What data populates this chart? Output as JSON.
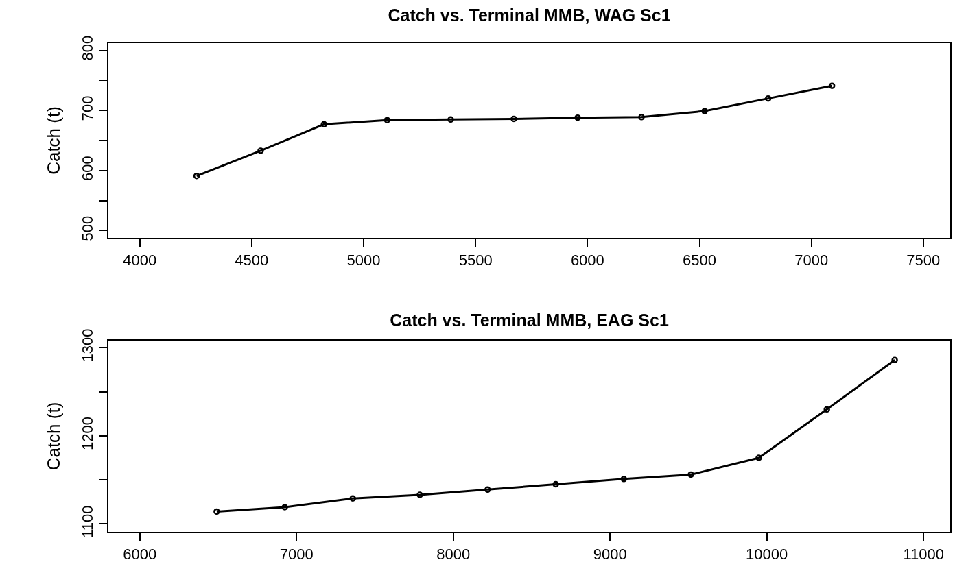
{
  "chart_data": [
    {
      "type": "line",
      "title": "Catch vs. Terminal MMB, WAG Sc1",
      "ylabel": "Catch (t)",
      "x": [
        4254,
        4540,
        4823,
        5105,
        5389,
        5671,
        5956,
        6241,
        6523,
        6807,
        7092
      ],
      "series": [
        {
          "color": "#000000",
          "values": [
            591,
            633,
            677,
            684,
            685,
            686,
            688,
            689,
            699,
            720,
            741
          ]
        }
      ],
      "xlim": [
        3860,
        7620
      ],
      "xticks": [
        4000,
        4500,
        5000,
        5500,
        6000,
        6500,
        7000,
        7500
      ],
      "ylim": [
        488,
        812
      ],
      "yticks": [
        500,
        {
          "value": 550,
          "label": null
        },
        600,
        {
          "value": 650,
          "label": null
        },
        700,
        {
          "value": 750,
          "label": null
        },
        800
      ],
      "grid": false,
      "marker": "circle",
      "line_style": "solid"
    },
    {
      "type": "line",
      "title": "Catch vs. Terminal MMB, EAG Sc1",
      "ylabel": "Catch (t)",
      "x": [
        6491,
        6925,
        7359,
        7787,
        8219,
        8654,
        9088,
        9516,
        9949,
        10383,
        10816
      ],
      "series": [
        {
          "color": "#000000",
          "values": [
            1114,
            1119,
            1129,
            1133,
            1139,
            1145,
            1151,
            1156,
            1175,
            1230,
            1286
          ]
        }
      ],
      "xlim": [
        5800,
        11170
      ],
      "xticks": [
        6000,
        7000,
        8000,
        9000,
        10000,
        11000
      ],
      "ylim": [
        1091,
        1308
      ],
      "yticks": [
        1100,
        {
          "value": 1150,
          "label": null
        },
        1200,
        {
          "value": 1250,
          "label": null
        },
        1300
      ],
      "grid": false,
      "marker": "circle",
      "line_style": "solid"
    }
  ]
}
